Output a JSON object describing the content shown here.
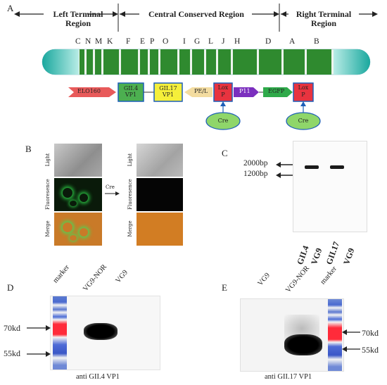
{
  "panels": {
    "a": "A",
    "b": "B",
    "c": "C",
    "d": "D",
    "e": "E"
  },
  "regions": {
    "left": "Left Terminal Region",
    "central": "Central Conserved Region",
    "right": "Right Terminal Region"
  },
  "segments": [
    "C",
    "N",
    "M",
    "K",
    "F",
    "E",
    "P",
    "O",
    "I",
    "G",
    "L",
    "J",
    "H",
    "D",
    "A",
    "B"
  ],
  "construct": {
    "elo": "ELO160",
    "gii4": [
      "GII.4",
      "VP1"
    ],
    "gii17": [
      "GII.17",
      "VP1"
    ],
    "pel": "PE/L",
    "lox1": [
      "Lox",
      "P"
    ],
    "p11": "P11",
    "egfp": "EGFP",
    "lox2": [
      "Lox",
      "P"
    ],
    "cre1": "Cre",
    "cre2": "Cre"
  },
  "panel_b": {
    "rows": [
      "Light",
      "Fluoresence",
      "Merge"
    ],
    "rows_right": [
      "Light",
      "Fluoresence",
      "Merge"
    ],
    "arrow_label": "Cre"
  },
  "panel_c": {
    "markers": [
      "2000bp",
      "1200bp"
    ],
    "lanes": [
      "GII.4",
      "VG9",
      "GII.17",
      "VG9"
    ]
  },
  "panel_d": {
    "lanes": [
      "marker",
      "VG9-NOR",
      "VG9"
    ],
    "markers": [
      "70kd",
      "55kd"
    ],
    "caption": "anti GII.4 VP1"
  },
  "panel_e": {
    "lanes": [
      "VG9",
      "VG9-NOR",
      "marker"
    ],
    "markers": [
      "70kd",
      "55kd"
    ],
    "caption": "anti GII.17 VP1"
  },
  "colors": {
    "segment_green": "#2f8a2f",
    "terminal_teal": "#5fc9c0",
    "elo_red": "#e85a5a",
    "gii4_green": "#4caf50",
    "gii17_yellow": "#f5ef3a",
    "pel_beige": "#f3dca0",
    "lox_red": "#e8333f",
    "p11_purple": "#7b2fbe",
    "egfp_green": "#2faa4a",
    "cre_green": "#8fd66a"
  }
}
